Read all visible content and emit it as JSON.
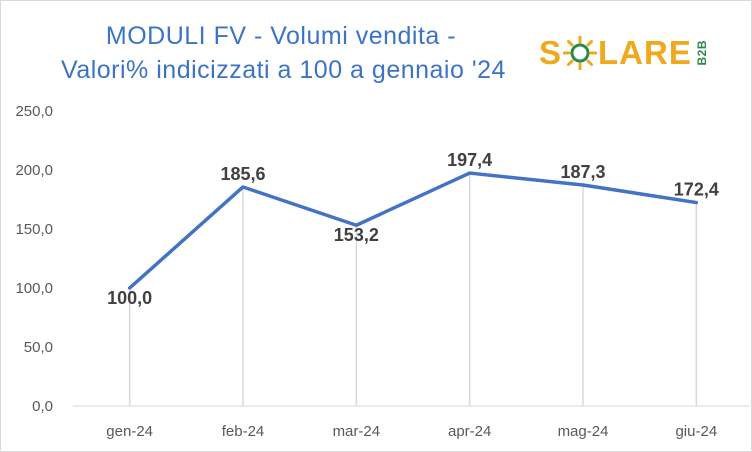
{
  "chart_data": {
    "type": "line",
    "title_lines": [
      "MODULI FV - Volumi vendita -",
      "Valori% indicizzati a 100 a gennaio '24"
    ],
    "categories": [
      "gen-24",
      "feb-24",
      "mar-24",
      "apr-24",
      "mag-24",
      "giu-24"
    ],
    "values": [
      100.0,
      185.6,
      153.2,
      197.4,
      187.3,
      172.4
    ],
    "data_labels": [
      "100,0",
      "185,6",
      "153,2",
      "197,4",
      "187,3",
      "172,4"
    ],
    "y_ticks": [
      "0,0",
      "50,0",
      "100,0",
      "150,0",
      "200,0",
      "250,0"
    ],
    "ylim": [
      0,
      250
    ],
    "grid": "vertical drop lines",
    "line_color": "#4472c4",
    "legend": "none"
  },
  "logo": {
    "letters_left": "S",
    "letters_right": "LARE",
    "sub": "B2B",
    "colors": {
      "main": "#f0a81c",
      "sub": "#2e8a4a"
    }
  }
}
